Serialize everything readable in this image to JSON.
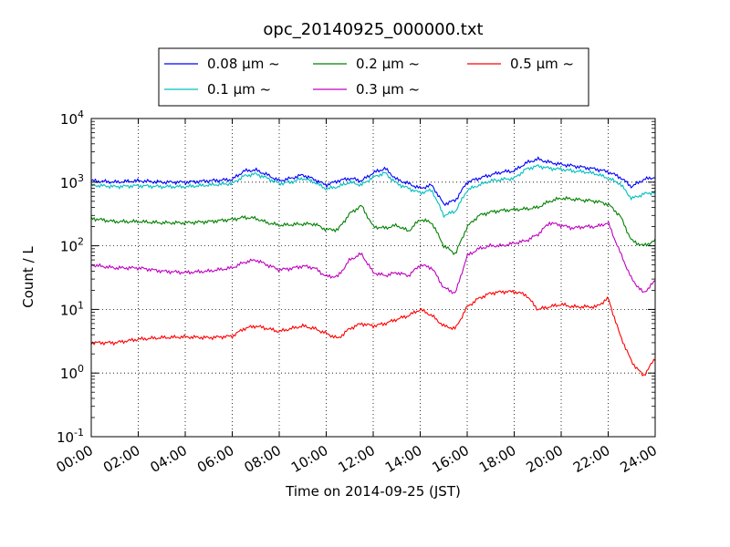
{
  "chart_data": {
    "type": "line",
    "title": "opc_20140925_000000.txt",
    "xlabel": "Time on 2014-09-25 (JST)",
    "ylabel": "Count / L",
    "yscale": "log",
    "ylim": [
      0.1,
      10000
    ],
    "xlim": [
      "00:00",
      "24:00"
    ],
    "grid": true,
    "legend_position": "top-center",
    "x_ticks": [
      "00:00",
      "02:00",
      "04:00",
      "06:00",
      "08:00",
      "10:00",
      "12:00",
      "14:00",
      "16:00",
      "18:00",
      "20:00",
      "22:00",
      "24:00"
    ],
    "y_ticks": [
      {
        "value": 0.1,
        "base": "10",
        "exp": "-1"
      },
      {
        "value": 1,
        "base": "10",
        "exp": "0"
      },
      {
        "value": 10,
        "base": "10",
        "exp": "1"
      },
      {
        "value": 100,
        "base": "10",
        "exp": "2"
      },
      {
        "value": 1000,
        "base": "10",
        "exp": "3"
      },
      {
        "value": 10000,
        "base": "10",
        "exp": "4"
      }
    ],
    "x_hours": [
      0,
      1,
      2,
      3,
      4,
      5,
      6,
      6.5,
      7,
      7.5,
      8,
      8.5,
      9,
      9.5,
      10,
      10.5,
      11,
      11.5,
      12,
      12.5,
      13,
      13.5,
      14,
      14.5,
      15,
      15.5,
      16,
      16.5,
      17,
      17.5,
      18,
      18.5,
      19,
      19.5,
      20,
      20.5,
      21,
      21.5,
      22,
      22.5,
      23,
      23.5,
      24
    ],
    "series": [
      {
        "name": "0.08 μm ~",
        "color": "#0000ff",
        "values": [
          1050,
          1000,
          1050,
          1000,
          1000,
          1050,
          1100,
          1500,
          1550,
          1300,
          1050,
          1150,
          1300,
          1100,
          900,
          1050,
          1150,
          1050,
          1400,
          1650,
          1100,
          950,
          800,
          900,
          450,
          520,
          1000,
          1150,
          1300,
          1450,
          1500,
          2000,
          2300,
          2050,
          1900,
          1800,
          1700,
          1600,
          1450,
          1200,
          850,
          1100,
          1200
        ]
      },
      {
        "name": "0.1 μm ~",
        "color": "#00bfbf",
        "values": [
          900,
          850,
          880,
          850,
          850,
          900,
          950,
          1250,
          1350,
          1150,
          950,
          1000,
          1150,
          1000,
          780,
          850,
          1000,
          900,
          1200,
          1400,
          950,
          800,
          680,
          750,
          300,
          350,
          750,
          900,
          1050,
          1100,
          1150,
          1600,
          1800,
          1650,
          1600,
          1500,
          1450,
          1350,
          1150,
          950,
          550,
          650,
          700
        ]
      },
      {
        "name": "0.2 μm ~",
        "color": "#008000",
        "values": [
          270,
          240,
          240,
          230,
          230,
          240,
          260,
          280,
          270,
          230,
          210,
          215,
          220,
          220,
          180,
          180,
          320,
          430,
          200,
          190,
          210,
          170,
          260,
          230,
          100,
          75,
          200,
          300,
          340,
          360,
          370,
          380,
          400,
          500,
          560,
          540,
          520,
          500,
          450,
          300,
          120,
          100,
          120
        ]
      },
      {
        "name": "0.3 μm ~",
        "color": "#bf00bf",
        "values": [
          50,
          45,
          45,
          40,
          38,
          40,
          45,
          55,
          60,
          50,
          42,
          44,
          48,
          45,
          33,
          33,
          60,
          75,
          38,
          34,
          38,
          34,
          50,
          45,
          22,
          18,
          70,
          90,
          100,
          100,
          110,
          120,
          150,
          230,
          210,
          190,
          200,
          200,
          230,
          80,
          30,
          18,
          28
        ]
      },
      {
        "name": "0.5 μm ~",
        "color": "#ff0000",
        "values": [
          3,
          3,
          3.4,
          3.6,
          3.7,
          3.6,
          3.8,
          5,
          5.5,
          5,
          4.5,
          5,
          5.5,
          5,
          4.2,
          3.5,
          5,
          6,
          5.5,
          6,
          7,
          8,
          10,
          8,
          5.5,
          5,
          11,
          15,
          18,
          19,
          19,
          17,
          10,
          11,
          12,
          11,
          11,
          11,
          15,
          4,
          1.5,
          0.9,
          1.7
        ]
      }
    ]
  }
}
